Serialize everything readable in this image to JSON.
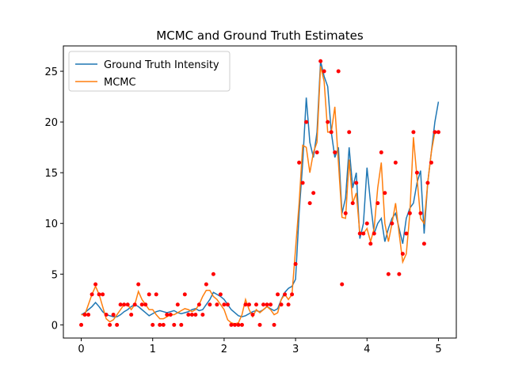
{
  "chart_data": {
    "type": "line",
    "title": "MCMC and Ground Truth Estimates",
    "x": [
      0,
      0.05,
      0.1,
      0.15,
      0.2,
      0.25,
      0.3,
      0.35,
      0.4,
      0.45,
      0.5,
      0.55,
      0.6,
      0.65,
      0.7,
      0.75,
      0.8,
      0.85,
      0.9,
      0.95,
      1,
      1.05,
      1.1,
      1.15,
      1.2,
      1.25,
      1.3,
      1.35,
      1.4,
      1.45,
      1.5,
      1.55,
      1.6,
      1.65,
      1.7,
      1.75,
      1.8,
      1.85,
      1.9,
      1.95,
      2,
      2.05,
      2.1,
      2.15,
      2.2,
      2.25,
      2.3,
      2.35,
      2.4,
      2.45,
      2.5,
      2.55,
      2.6,
      2.65,
      2.7,
      2.75,
      2.8,
      2.85,
      2.9,
      2.95,
      3,
      3.05,
      3.1,
      3.15,
      3.2,
      3.25,
      3.3,
      3.35,
      3.4,
      3.45,
      3.5,
      3.55,
      3.6,
      3.65,
      3.7,
      3.75,
      3.8,
      3.85,
      3.9,
      3.95,
      4,
      4.05,
      4.1,
      4.15,
      4.2,
      4.25,
      4.3,
      4.35,
      4.4,
      4.45,
      4.5,
      4.55,
      4.6,
      4.65,
      4.7,
      4.75,
      4.8,
      4.85,
      4.9,
      4.95,
      5
    ],
    "series": [
      {
        "name": "Ground Truth Intensity",
        "color": "#1f77b4",
        "values": [
          1.0,
          1.2,
          1.5,
          1.8,
          2.2,
          1.8,
          1.3,
          1.0,
          0.9,
          0.8,
          0.8,
          1.0,
          1.3,
          1.5,
          1.8,
          2.0,
          1.8,
          1.5,
          1.2,
          0.9,
          1.1,
          1.3,
          1.4,
          1.3,
          1.2,
          1.3,
          1.4,
          1.2,
          1.1,
          1.2,
          1.3,
          1.5,
          1.6,
          1.4,
          1.5,
          2.0,
          2.5,
          3.2,
          3.0,
          2.8,
          2.5,
          2.0,
          1.5,
          1.2,
          0.9,
          0.8,
          0.9,
          1.1,
          1.3,
          1.4,
          1.3,
          1.5,
          1.8,
          1.6,
          1.4,
          1.6,
          2.5,
          3.2,
          3.6,
          3.8,
          4.5,
          11,
          16,
          22.4,
          18,
          16.5,
          19,
          26,
          24.5,
          23.5,
          19,
          16.5,
          17.5,
          11,
          12.5,
          17.5,
          13.5,
          15,
          8.5,
          10,
          15.5,
          12,
          9,
          10,
          10.5,
          8.2,
          9.5,
          10.5,
          11,
          9.5,
          8,
          10.5,
          11.5,
          12,
          14,
          15.2,
          9,
          14,
          17,
          20,
          22
        ]
      },
      {
        "name": "MCMC",
        "color": "#ff7f0e",
        "values": [
          1,
          1,
          2,
          3,
          3.8,
          3,
          1.8,
          0.6,
          0.3,
          0.5,
          1,
          1.5,
          2,
          2,
          1.5,
          2,
          3.3,
          2.5,
          2,
          1.5,
          1.5,
          1,
          0.6,
          0.6,
          0.8,
          1,
          1,
          1.2,
          1.4,
          1.6,
          1.5,
          1.3,
          1.5,
          2,
          2.8,
          3.4,
          3.4,
          2.8,
          2.5,
          2,
          1.5,
          0.5,
          0.2,
          0.1,
          0.2,
          1,
          2.5,
          1.5,
          0.8,
          1.5,
          1.2,
          1.5,
          1.8,
          1.5,
          1,
          1.2,
          2.5,
          3,
          2.5,
          3,
          7.5,
          12,
          17.7,
          17.5,
          15,
          17,
          18,
          25.5,
          24,
          19,
          19,
          21.5,
          16,
          10.6,
          10.5,
          16.3,
          12,
          13,
          9,
          9,
          9.5,
          8.2,
          9.5,
          13.5,
          16,
          10,
          8.2,
          10,
          12,
          9,
          6.2,
          7,
          11,
          18.5,
          14.5,
          10.5,
          10,
          14,
          17,
          19,
          19
        ]
      }
    ],
    "points": {
      "color": "#ff0000",
      "values": [
        0,
        1,
        1,
        3,
        4,
        3,
        3,
        1,
        0,
        1,
        0,
        2,
        2,
        2,
        1,
        2,
        4,
        2,
        2,
        3,
        0,
        3,
        0,
        0,
        1,
        1,
        0,
        2,
        0,
        3,
        1,
        1,
        1,
        2,
        1,
        4,
        2,
        5,
        2,
        3,
        2,
        2,
        0,
        0,
        0,
        0,
        2,
        2,
        1,
        2,
        0,
        2,
        2,
        2,
        0,
        3,
        2,
        3,
        2,
        3,
        6,
        16,
        14,
        20,
        12,
        13,
        17,
        26,
        25,
        20,
        19,
        17,
        25,
        4,
        11,
        19,
        12,
        14,
        9,
        9,
        10,
        8,
        9,
        12,
        17,
        13,
        5,
        10,
        16,
        5,
        7,
        9,
        11,
        19,
        15,
        11,
        8,
        14,
        16,
        19,
        19
      ]
    },
    "xlim": [
      -0.25,
      5.25
    ],
    "ylim": [
      -1.3,
      27.5
    ],
    "xticks": [
      0,
      1,
      2,
      3,
      4,
      5
    ],
    "yticks": [
      0,
      5,
      10,
      15,
      20,
      25
    ],
    "legend": "upper left"
  }
}
